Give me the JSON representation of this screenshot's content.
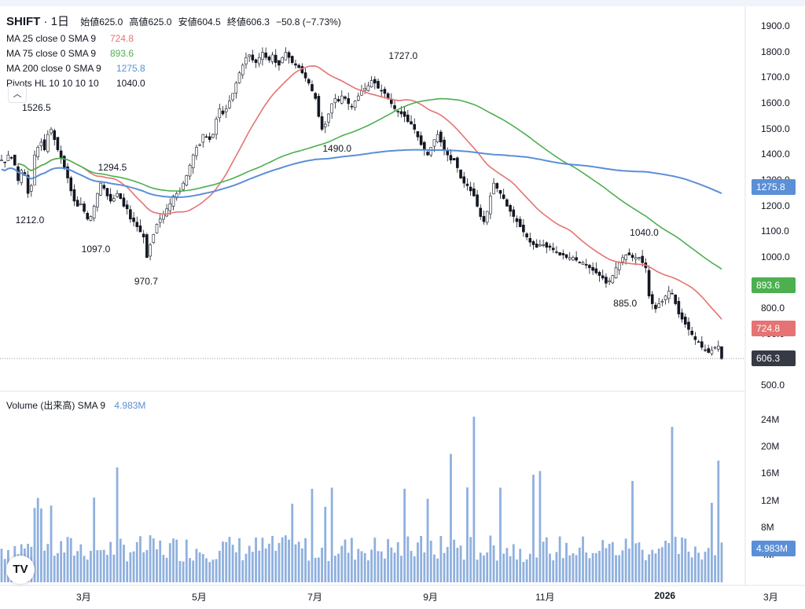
{
  "header": {
    "symbol": "SHIFT",
    "interval": "1日",
    "open_label": "始値",
    "open": "625.0",
    "high_label": "高値",
    "high": "625.0",
    "low_label": "安値",
    "low": "604.5",
    "close_label": "終値",
    "close": "606.3",
    "change": "−50.8 (−7.73%)"
  },
  "indicators": [
    {
      "label": "MA 25 close 0 SMA 9",
      "value": "724.8",
      "color": "#e57373"
    },
    {
      "label": "MA 75 close 0 SMA 9",
      "value": "893.6",
      "color": "#4caf50"
    },
    {
      "label": "MA 200 close 0 SMA 9",
      "value": "1275.8",
      "color": "#5b8fd6"
    },
    {
      "label": "Pivots HL 10 10 10 10",
      "value": "1040.0",
      "color": "#131722"
    }
  ],
  "volume_legend": {
    "label": "Volume (出来高) SMA 9",
    "value": "4.983M",
    "color": "#5b8fd6"
  },
  "price_labels": [
    {
      "text": "1275.8",
      "value": 1275.8,
      "color": "#5b8fd6"
    },
    {
      "text": "893.6",
      "value": 893.6,
      "color": "#4caf50"
    },
    {
      "text": "724.8",
      "value": 724.8,
      "color": "#e57373"
    },
    {
      "text": "606.3",
      "value": 606.3,
      "color": "#363a45"
    }
  ],
  "volume_label": {
    "text": "4.983M",
    "value": 4.983,
    "color": "#5b8fd6"
  },
  "collapse_icon": "chevron-up-icon",
  "logo_text": "TV",
  "chart_data": {
    "type": "candlestick",
    "price_axis": {
      "min": 500,
      "max": 1900,
      "ticks": [
        1900,
        1800,
        1700,
        1600,
        1500,
        1400,
        1300,
        1200,
        1100,
        1000,
        900,
        800,
        700,
        600,
        500
      ],
      "tick_labels": [
        "1900.0",
        "1800.0",
        "1700.0",
        "1600.0",
        "1500.0",
        "1400.0",
        "1300.0",
        "1200.0",
        "1100.0",
        "1000.0",
        "900.0",
        "800.0",
        "700.0",
        "600.0",
        "500.0"
      ]
    },
    "volume_axis": {
      "unit": "M",
      "ticks": [
        24,
        20,
        16,
        12,
        8,
        4
      ],
      "tick_labels": [
        "24M",
        "20M",
        "16M",
        "12M",
        "8M",
        "4M"
      ]
    },
    "x_labels": [
      "3月",
      "5月",
      "7月",
      "9月",
      "11月",
      "2026",
      "3月"
    ],
    "x_label_idx": [
      25,
      60,
      95,
      130,
      164,
      200,
      233
    ],
    "pivots": [
      {
        "text": "1526.5",
        "idx": 10,
        "value": 1526.5,
        "pos": "above"
      },
      {
        "text": "1294.5",
        "idx": 33,
        "value": 1294.5,
        "pos": "above"
      },
      {
        "text": "1212.0",
        "idx": 8,
        "value": 1212.0,
        "pos": "below"
      },
      {
        "text": "1097.0",
        "idx": 28,
        "value": 1097.0,
        "pos": "below"
      },
      {
        "text": "970.7",
        "idx": 44,
        "value": 970.7,
        "pos": "below"
      },
      {
        "text": "1727.0",
        "idx": 121,
        "value": 1727.0,
        "pos": "above"
      },
      {
        "text": "1490.0",
        "idx": 101,
        "value": 1490.0,
        "pos": "below"
      },
      {
        "text": "1040.0",
        "idx": 194,
        "value": 1040.0,
        "pos": "above"
      },
      {
        "text": "885.0",
        "idx": 189,
        "value": 885.0,
        "pos": "below"
      }
    ],
    "series_close": [
      1380,
      1370,
      1400,
      1390,
      1360,
      1300,
      1340,
      1320,
      1250,
      1280,
      1400,
      1430,
      1450,
      1420,
      1480,
      1500,
      1460,
      1420,
      1390,
      1350,
      1310,
      1260,
      1220,
      1200,
      1210,
      1180,
      1150,
      1160,
      1200,
      1250,
      1290,
      1270,
      1240,
      1220,
      1230,
      1250,
      1230,
      1200,
      1190,
      1150,
      1140,
      1120,
      1100,
      1080,
      1000,
      1050,
      1090,
      1130,
      1150,
      1170,
      1190,
      1210,
      1240,
      1250,
      1260,
      1290,
      1320,
      1360,
      1400,
      1430,
      1440,
      1480,
      1470,
      1460,
      1480,
      1540,
      1580,
      1560,
      1580,
      1610,
      1640,
      1680,
      1720,
      1750,
      1780,
      1790,
      1770,
      1760,
      1780,
      1800,
      1780,
      1770,
      1790,
      1760,
      1750,
      1780,
      1800,
      1780,
      1760,
      1750,
      1740,
      1720,
      1700,
      1680,
      1650,
      1620,
      1550,
      1500,
      1520,
      1560,
      1600,
      1620,
      1610,
      1630,
      1620,
      1600,
      1590,
      1610,
      1630,
      1650,
      1660,
      1670,
      1690,
      1680,
      1660,
      1650,
      1640,
      1620,
      1600,
      1580,
      1570,
      1560,
      1550,
      1530,
      1520,
      1500,
      1470,
      1440,
      1420,
      1400,
      1430,
      1460,
      1480,
      1450,
      1420,
      1400,
      1380,
      1380,
      1350,
      1310,
      1290,
      1280,
      1260,
      1240,
      1200,
      1160,
      1140,
      1180,
      1240,
      1290,
      1270,
      1250,
      1230,
      1200,
      1180,
      1160,
      1140,
      1120,
      1100,
      1080,
      1060,
      1050,
      1040,
      1050,
      1050,
      1040,
      1040,
      1030,
      1020,
      1010,
      1010,
      1000,
      1000,
      1000,
      990,
      980,
      980,
      970,
      960,
      950,
      940,
      930,
      920,
      900,
      910,
      930,
      960,
      980,
      1000,
      1010,
      1010,
      1000,
      1000,
      1000,
      980,
      960,
      850,
      820,
      800,
      820,
      830,
      850,
      870,
      860,
      820,
      780,
      760,
      740,
      720,
      700,
      680,
      670,
      650,
      640,
      630,
      640,
      650,
      655,
      606
    ]
  }
}
